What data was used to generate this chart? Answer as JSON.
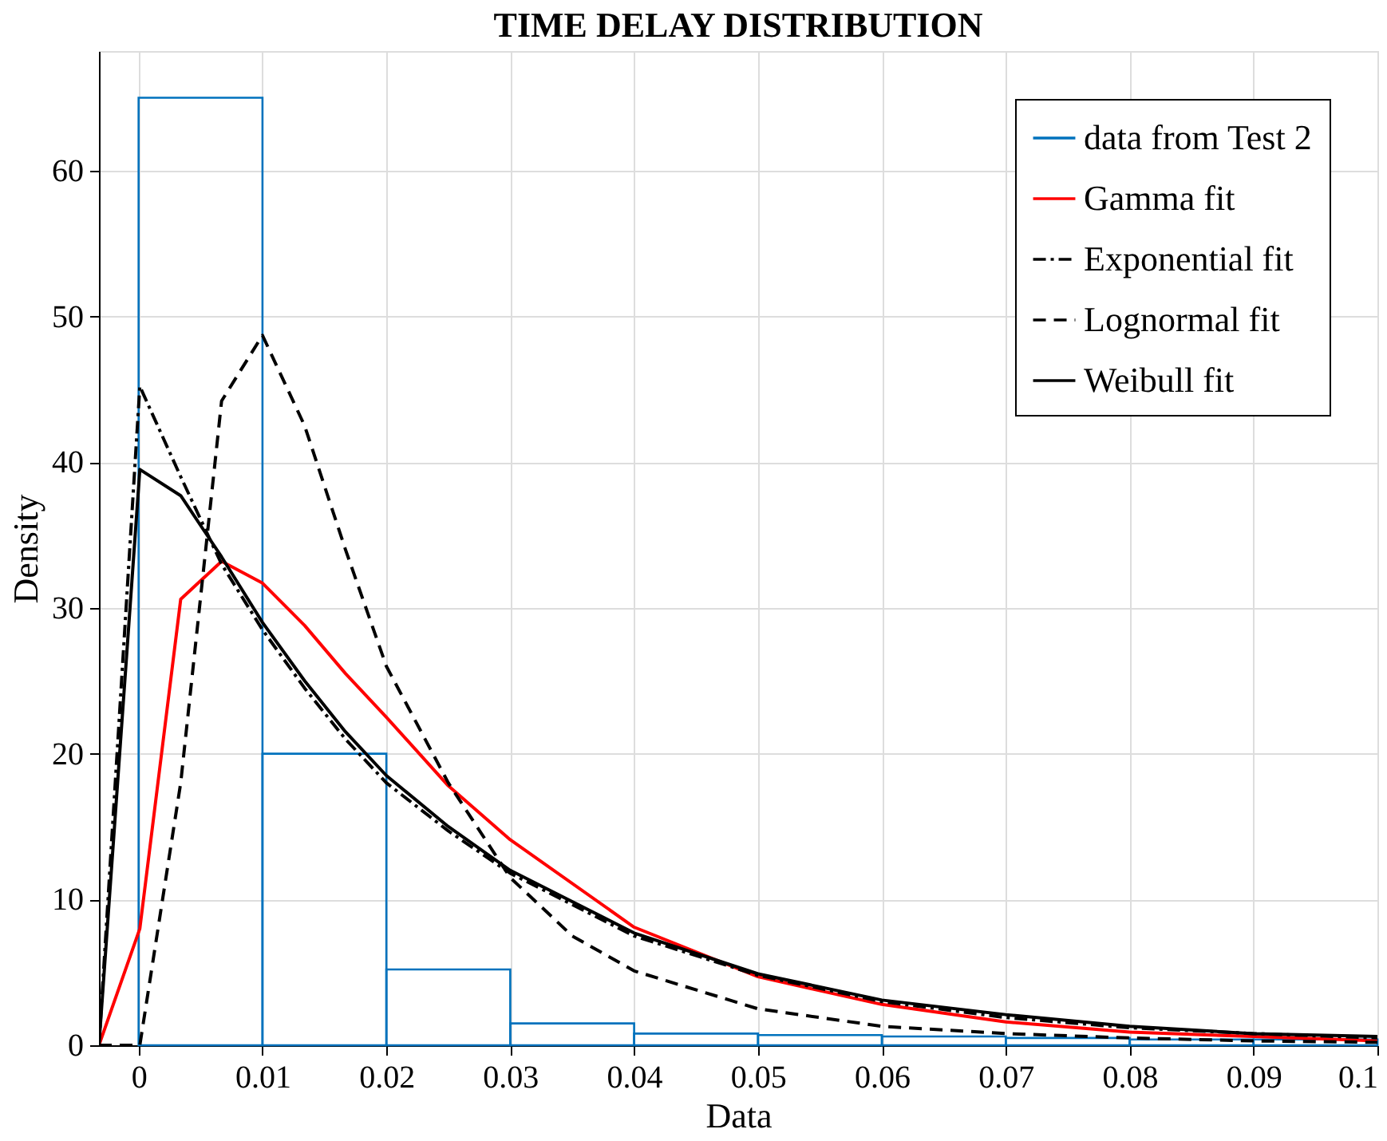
{
  "chart_data": {
    "type": "histogram",
    "title": "TIME DELAY DISTRIBUTION",
    "xlabel": "Data",
    "ylabel": "Density",
    "series": [
      {
        "name": "data from Test 2",
        "color": "#0072bd",
        "line_style": "solid",
        "bins": [
          0,
          0.01,
          0.02,
          0.03,
          0.04,
          0.05,
          0.06,
          0.07,
          0.08,
          0.09,
          0.1
        ],
        "values": [
          65,
          20,
          5.2,
          1.5,
          0.8,
          0.7,
          0.6,
          0.5,
          0.4,
          0.4
        ]
      },
      {
        "name": "Gamma fit",
        "type": "line",
        "color": "#ff0000",
        "line_style": "solid",
        "x": [
          -0.0032,
          0.0001,
          0.0034,
          0.0067,
          0.01,
          0.0134,
          0.0167,
          0.02,
          0.025,
          0.03,
          0.04,
          0.05,
          0.06,
          0.07,
          0.08,
          0.09,
          0.1
        ],
        "values": [
          0,
          8,
          30.6,
          33.2,
          31.7,
          28.8,
          25.5,
          22.5,
          17.8,
          14.1,
          8.1,
          4.7,
          2.8,
          1.6,
          0.9,
          0.6,
          0.3
        ]
      },
      {
        "name": "Exponential fit",
        "type": "line",
        "color": "#000000",
        "line_style": "dashdot",
        "x": [
          -0.0032,
          0.0001,
          0.0034,
          0.0067,
          0.01,
          0.0134,
          0.0167,
          0.02,
          0.025,
          0.03,
          0.04,
          0.05,
          0.06,
          0.07,
          0.08,
          0.09,
          0.1
        ],
        "values": [
          0,
          45.2,
          39,
          33,
          28.5,
          24.5,
          21,
          18,
          14.7,
          11.8,
          7.5,
          4.8,
          3,
          1.9,
          1.2,
          0.8,
          0.5
        ]
      },
      {
        "name": "Lognormal fit",
        "type": "line",
        "color": "#000000",
        "line_style": "dashed",
        "x": [
          -0.0032,
          0.0001,
          0.0034,
          0.0067,
          0.01,
          0.0134,
          0.0167,
          0.02,
          0.025,
          0.03,
          0.035,
          0.04,
          0.05,
          0.06,
          0.07,
          0.08,
          0.09,
          0.1
        ],
        "values": [
          0,
          0,
          18,
          44.2,
          48.7,
          42.5,
          34,
          26,
          18,
          11.5,
          7.5,
          5.1,
          2.5,
          1.3,
          0.8,
          0.5,
          0.3,
          0.2
        ]
      },
      {
        "name": "Weibull fit",
        "type": "line",
        "color": "#000000",
        "line_style": "solid",
        "x": [
          -0.0032,
          0.0001,
          0.0034,
          0.0067,
          0.01,
          0.0134,
          0.0167,
          0.02,
          0.025,
          0.03,
          0.04,
          0.05,
          0.06,
          0.07,
          0.08,
          0.09,
          0.1
        ],
        "values": [
          0,
          39.5,
          37.7,
          33.5,
          29,
          25,
          21.5,
          18.5,
          15,
          12,
          7.7,
          4.9,
          3.1,
          2.1,
          1.3,
          0.8,
          0.6
        ]
      }
    ],
    "xlim": [
      -0.0032,
      0.1
    ],
    "xticks": [
      0,
      0.01,
      0.02,
      0.03,
      0.04,
      0.05,
      0.06,
      0.07,
      0.08,
      0.09,
      0.1
    ],
    "ylim": [
      0,
      68.2
    ],
    "yticks": [
      0,
      10,
      20,
      30,
      40,
      50,
      60
    ],
    "grid": true,
    "legend": "top right"
  }
}
